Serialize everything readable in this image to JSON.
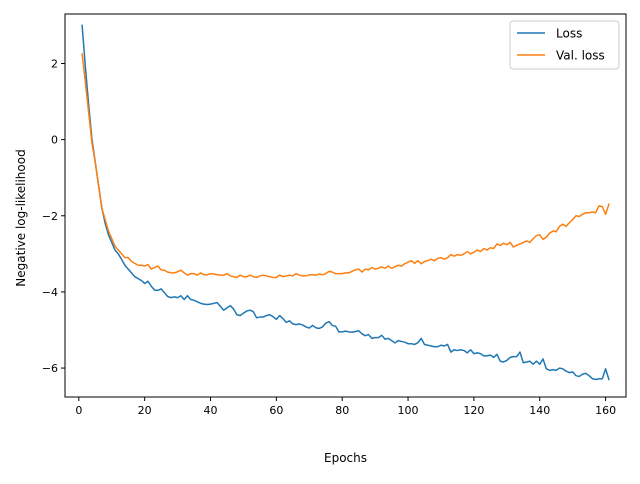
{
  "chart_data": {
    "type": "line",
    "title": "",
    "xlabel": "Epochs",
    "ylabel": "Negative log-likelihood",
    "xlim": [
      -4.2,
      166.2
    ],
    "ylim": [
      -6.76,
      3.3
    ],
    "xticks": [
      0,
      20,
      40,
      60,
      80,
      100,
      120,
      140,
      160
    ],
    "yticks": [
      2,
      0,
      -2,
      -4,
      -6
    ],
    "legend": {
      "placement": "top-right",
      "entries": [
        "Loss",
        "Val. loss"
      ]
    },
    "grid": false,
    "colors": {
      "Loss": "#1f77b4",
      "Val. loss": "#ff7f0e"
    },
    "series": [
      {
        "name": "Loss",
        "points": [
          [
            1,
            3.0
          ],
          [
            2,
            1.9
          ],
          [
            3,
            0.9
          ],
          [
            4,
            0.0
          ],
          [
            5,
            -0.6
          ],
          [
            6,
            -1.2
          ],
          [
            7,
            -1.8
          ],
          [
            8,
            -2.2
          ],
          [
            9,
            -2.5
          ],
          [
            10,
            -2.7
          ],
          [
            11,
            -2.9
          ],
          [
            12,
            -3.0
          ],
          [
            13,
            -3.15
          ],
          [
            14,
            -3.3
          ],
          [
            15,
            -3.4
          ],
          [
            16,
            -3.5
          ],
          [
            17,
            -3.6
          ],
          [
            18,
            -3.65
          ],
          [
            19,
            -3.7
          ],
          [
            20,
            -3.78
          ],
          [
            21,
            -3.72
          ],
          [
            22,
            -3.85
          ],
          [
            23,
            -3.95
          ],
          [
            24,
            -3.96
          ],
          [
            25,
            -3.92
          ],
          [
            26,
            -4.02
          ],
          [
            27,
            -4.12
          ],
          [
            28,
            -4.15
          ],
          [
            29,
            -4.13
          ],
          [
            30,
            -4.15
          ],
          [
            31,
            -4.1
          ],
          [
            32,
            -4.2
          ],
          [
            33,
            -4.1
          ],
          [
            34,
            -4.2
          ],
          [
            35,
            -4.22
          ],
          [
            36,
            -4.26
          ],
          [
            37,
            -4.3
          ],
          [
            38,
            -4.32
          ],
          [
            39,
            -4.33
          ],
          [
            40,
            -4.32
          ],
          [
            41,
            -4.3
          ],
          [
            42,
            -4.28
          ],
          [
            43,
            -4.38
          ],
          [
            44,
            -4.48
          ],
          [
            45,
            -4.42
          ],
          [
            46,
            -4.36
          ],
          [
            47,
            -4.45
          ],
          [
            48,
            -4.6
          ],
          [
            49,
            -4.62
          ],
          [
            50,
            -4.56
          ],
          [
            51,
            -4.5
          ],
          [
            52,
            -4.48
          ],
          [
            53,
            -4.52
          ],
          [
            54,
            -4.68
          ],
          [
            55,
            -4.66
          ],
          [
            56,
            -4.66
          ],
          [
            57,
            -4.62
          ],
          [
            58,
            -4.6
          ],
          [
            59,
            -4.65
          ],
          [
            60,
            -4.72
          ],
          [
            61,
            -4.62
          ],
          [
            62,
            -4.7
          ],
          [
            63,
            -4.8
          ],
          [
            64,
            -4.76
          ],
          [
            65,
            -4.84
          ],
          [
            66,
            -4.86
          ],
          [
            67,
            -4.84
          ],
          [
            68,
            -4.87
          ],
          [
            69,
            -4.92
          ],
          [
            70,
            -4.95
          ],
          [
            71,
            -4.88
          ],
          [
            72,
            -4.94
          ],
          [
            73,
            -4.96
          ],
          [
            74,
            -4.92
          ],
          [
            75,
            -4.82
          ],
          [
            76,
            -4.78
          ],
          [
            77,
            -4.88
          ],
          [
            78,
            -4.9
          ],
          [
            79,
            -5.05
          ],
          [
            80,
            -5.05
          ],
          [
            81,
            -5.03
          ],
          [
            82,
            -5.05
          ],
          [
            83,
            -5.06
          ],
          [
            84,
            -5.04
          ],
          [
            85,
            -5.02
          ],
          [
            86,
            -5.1
          ],
          [
            87,
            -5.15
          ],
          [
            88,
            -5.12
          ],
          [
            89,
            -5.22
          ],
          [
            90,
            -5.2
          ],
          [
            91,
            -5.2
          ],
          [
            92,
            -5.14
          ],
          [
            93,
            -5.24
          ],
          [
            94,
            -5.22
          ],
          [
            95,
            -5.28
          ],
          [
            96,
            -5.34
          ],
          [
            97,
            -5.28
          ],
          [
            98,
            -5.3
          ],
          [
            99,
            -5.32
          ],
          [
            100,
            -5.36
          ],
          [
            101,
            -5.36
          ],
          [
            102,
            -5.38
          ],
          [
            103,
            -5.33
          ],
          [
            104,
            -5.22
          ],
          [
            105,
            -5.38
          ],
          [
            106,
            -5.4
          ],
          [
            107,
            -5.42
          ],
          [
            108,
            -5.44
          ],
          [
            109,
            -5.44
          ],
          [
            110,
            -5.4
          ],
          [
            111,
            -5.42
          ],
          [
            112,
            -5.38
          ],
          [
            113,
            -5.58
          ],
          [
            114,
            -5.52
          ],
          [
            115,
            -5.54
          ],
          [
            116,
            -5.52
          ],
          [
            117,
            -5.54
          ],
          [
            118,
            -5.6
          ],
          [
            119,
            -5.52
          ],
          [
            120,
            -5.62
          ],
          [
            121,
            -5.6
          ],
          [
            122,
            -5.62
          ],
          [
            123,
            -5.68
          ],
          [
            124,
            -5.68
          ],
          [
            125,
            -5.66
          ],
          [
            126,
            -5.72
          ],
          [
            127,
            -5.64
          ],
          [
            128,
            -5.82
          ],
          [
            129,
            -5.84
          ],
          [
            130,
            -5.8
          ],
          [
            131,
            -5.72
          ],
          [
            132,
            -5.7
          ],
          [
            133,
            -5.7
          ],
          [
            134,
            -5.58
          ],
          [
            135,
            -5.86
          ],
          [
            136,
            -5.84
          ],
          [
            137,
            -5.82
          ],
          [
            138,
            -5.9
          ],
          [
            139,
            -5.82
          ],
          [
            140,
            -5.9
          ],
          [
            141,
            -5.76
          ],
          [
            142,
            -6.02
          ],
          [
            143,
            -6.06
          ],
          [
            144,
            -6.04
          ],
          [
            145,
            -6.06
          ],
          [
            146,
            -6.0
          ],
          [
            147,
            -6.02
          ],
          [
            148,
            -6.08
          ],
          [
            149,
            -6.12
          ],
          [
            150,
            -6.1
          ],
          [
            151,
            -6.2
          ],
          [
            152,
            -6.22
          ],
          [
            153,
            -6.16
          ],
          [
            154,
            -6.14
          ],
          [
            155,
            -6.2
          ],
          [
            156,
            -6.28
          ],
          [
            157,
            -6.3
          ],
          [
            158,
            -6.28
          ],
          [
            159,
            -6.28
          ],
          [
            160,
            -6.02
          ],
          [
            161,
            -6.3
          ]
        ]
      },
      {
        "name": "Val. loss",
        "points": [
          [
            1,
            2.25
          ],
          [
            2,
            1.5
          ],
          [
            3,
            0.7
          ],
          [
            4,
            -0.1
          ],
          [
            5,
            -0.6
          ],
          [
            6,
            -1.2
          ],
          [
            7,
            -1.8
          ],
          [
            8,
            -2.1
          ],
          [
            9,
            -2.4
          ],
          [
            10,
            -2.6
          ],
          [
            11,
            -2.8
          ],
          [
            12,
            -2.9
          ],
          [
            13,
            -3.0
          ],
          [
            14,
            -3.1
          ],
          [
            15,
            -3.1
          ],
          [
            16,
            -3.2
          ],
          [
            17,
            -3.25
          ],
          [
            18,
            -3.3
          ],
          [
            19,
            -3.3
          ],
          [
            20,
            -3.32
          ],
          [
            21,
            -3.28
          ],
          [
            22,
            -3.4
          ],
          [
            23,
            -3.36
          ],
          [
            24,
            -3.32
          ],
          [
            25,
            -3.42
          ],
          [
            26,
            -3.43
          ],
          [
            27,
            -3.48
          ],
          [
            28,
            -3.5
          ],
          [
            29,
            -3.5
          ],
          [
            30,
            -3.47
          ],
          [
            31,
            -3.43
          ],
          [
            32,
            -3.5
          ],
          [
            33,
            -3.56
          ],
          [
            34,
            -3.52
          ],
          [
            35,
            -3.52
          ],
          [
            36,
            -3.56
          ],
          [
            37,
            -3.5
          ],
          [
            38,
            -3.55
          ],
          [
            39,
            -3.55
          ],
          [
            40,
            -3.52
          ],
          [
            41,
            -3.53
          ],
          [
            42,
            -3.55
          ],
          [
            43,
            -3.56
          ],
          [
            44,
            -3.56
          ],
          [
            45,
            -3.52
          ],
          [
            46,
            -3.58
          ],
          [
            47,
            -3.6
          ],
          [
            48,
            -3.62
          ],
          [
            49,
            -3.56
          ],
          [
            50,
            -3.6
          ],
          [
            51,
            -3.6
          ],
          [
            52,
            -3.56
          ],
          [
            53,
            -3.6
          ],
          [
            54,
            -3.62
          ],
          [
            55,
            -3.58
          ],
          [
            56,
            -3.56
          ],
          [
            57,
            -3.58
          ],
          [
            58,
            -3.6
          ],
          [
            59,
            -3.62
          ],
          [
            60,
            -3.62
          ],
          [
            61,
            -3.56
          ],
          [
            62,
            -3.6
          ],
          [
            63,
            -3.58
          ],
          [
            64,
            -3.56
          ],
          [
            65,
            -3.58
          ],
          [
            66,
            -3.52
          ],
          [
            67,
            -3.56
          ],
          [
            68,
            -3.58
          ],
          [
            69,
            -3.58
          ],
          [
            70,
            -3.55
          ],
          [
            71,
            -3.55
          ],
          [
            72,
            -3.56
          ],
          [
            73,
            -3.53
          ],
          [
            74,
            -3.55
          ],
          [
            75,
            -3.52
          ],
          [
            76,
            -3.46
          ],
          [
            77,
            -3.48
          ],
          [
            78,
            -3.52
          ],
          [
            79,
            -3.52
          ],
          [
            80,
            -3.52
          ],
          [
            81,
            -3.5
          ],
          [
            82,
            -3.5
          ],
          [
            83,
            -3.46
          ],
          [
            84,
            -3.42
          ],
          [
            85,
            -3.4
          ],
          [
            86,
            -3.48
          ],
          [
            87,
            -3.4
          ],
          [
            88,
            -3.42
          ],
          [
            89,
            -3.36
          ],
          [
            90,
            -3.4
          ],
          [
            91,
            -3.38
          ],
          [
            92,
            -3.34
          ],
          [
            93,
            -3.38
          ],
          [
            94,
            -3.32
          ],
          [
            95,
            -3.38
          ],
          [
            96,
            -3.34
          ],
          [
            97,
            -3.3
          ],
          [
            98,
            -3.32
          ],
          [
            99,
            -3.26
          ],
          [
            100,
            -3.22
          ],
          [
            101,
            -3.18
          ],
          [
            102,
            -3.25
          ],
          [
            103,
            -3.18
          ],
          [
            104,
            -3.26
          ],
          [
            105,
            -3.2
          ],
          [
            106,
            -3.18
          ],
          [
            107,
            -3.14
          ],
          [
            108,
            -3.18
          ],
          [
            109,
            -3.12
          ],
          [
            110,
            -3.1
          ],
          [
            111,
            -3.14
          ],
          [
            112,
            -3.1
          ],
          [
            113,
            -3.02
          ],
          [
            114,
            -3.06
          ],
          [
            115,
            -3.02
          ],
          [
            116,
            -3.04
          ],
          [
            117,
            -3.0
          ],
          [
            118,
            -2.94
          ],
          [
            119,
            -3.0
          ],
          [
            120,
            -2.96
          ],
          [
            121,
            -2.9
          ],
          [
            122,
            -2.94
          ],
          [
            123,
            -2.86
          ],
          [
            124,
            -2.9
          ],
          [
            125,
            -2.84
          ],
          [
            126,
            -2.86
          ],
          [
            127,
            -2.74
          ],
          [
            128,
            -2.78
          ],
          [
            129,
            -2.72
          ],
          [
            130,
            -2.76
          ],
          [
            131,
            -2.7
          ],
          [
            132,
            -2.82
          ],
          [
            133,
            -2.78
          ],
          [
            134,
            -2.74
          ],
          [
            135,
            -2.7
          ],
          [
            136,
            -2.66
          ],
          [
            137,
            -2.7
          ],
          [
            138,
            -2.6
          ],
          [
            139,
            -2.52
          ],
          [
            140,
            -2.5
          ],
          [
            141,
            -2.62
          ],
          [
            142,
            -2.56
          ],
          [
            143,
            -2.46
          ],
          [
            144,
            -2.4
          ],
          [
            145,
            -2.42
          ],
          [
            146,
            -2.28
          ],
          [
            147,
            -2.22
          ],
          [
            148,
            -2.28
          ],
          [
            149,
            -2.18
          ],
          [
            150,
            -2.1
          ],
          [
            151,
            -2.0
          ],
          [
            152,
            -2.02
          ],
          [
            153,
            -1.96
          ],
          [
            154,
            -1.92
          ],
          [
            155,
            -1.92
          ],
          [
            156,
            -1.9
          ],
          [
            157,
            -1.92
          ],
          [
            158,
            -1.74
          ],
          [
            159,
            -1.76
          ],
          [
            160,
            -1.96
          ],
          [
            161,
            -1.7
          ]
        ]
      }
    ]
  }
}
